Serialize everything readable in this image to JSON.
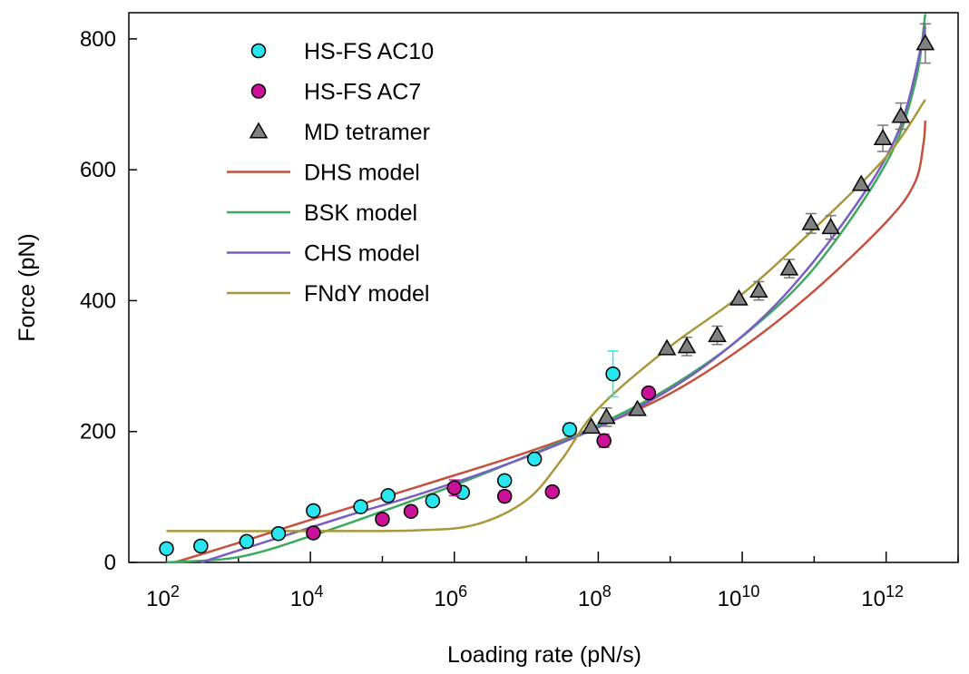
{
  "chart_data": {
    "type": "scatter",
    "title": "",
    "xlabel": "Loading rate (pN/s)",
    "ylabel": "Force (pN)",
    "x_scale": "log",
    "xlim": [
      30,
      10000000000000.0
    ],
    "ylim": [
      0,
      840
    ],
    "x_ticks": [
      {
        "value": 100,
        "base": "10",
        "exp": "2"
      },
      {
        "value": 10000,
        "base": "10",
        "exp": "4"
      },
      {
        "value": 1000000,
        "base": "10",
        "exp": "6"
      },
      {
        "value": 100000000,
        "base": "10",
        "exp": "8"
      },
      {
        "value": 10000000000,
        "base": "10",
        "exp": "10"
      },
      {
        "value": 1000000000000,
        "base": "10",
        "exp": "12"
      }
    ],
    "y_ticks": [
      0,
      200,
      400,
      600,
      800
    ],
    "grid": false,
    "legend_position": "top-left",
    "colors": {
      "HS-FS AC10": "#29e6ee",
      "HS-FS AC7": "#cc1199",
      "MD tetramer": "#808080",
      "DHS model": "#c4513e",
      "BSK model": "#3aaa5e",
      "CHS model": "#7b5cc4",
      "FNdY model": "#a8983a"
    },
    "legend": [
      {
        "label": "HS-FS AC10",
        "kind": "circle",
        "color": "#29e6ee"
      },
      {
        "label": "HS-FS AC7",
        "kind": "circle",
        "color": "#cc1199"
      },
      {
        "label": "MD tetramer",
        "kind": "triangle",
        "color": "#808080"
      },
      {
        "label": "DHS model",
        "kind": "line",
        "color": "#c4513e"
      },
      {
        "label": "BSK model",
        "kind": "line",
        "color": "#3aaa5e"
      },
      {
        "label": "CHS model",
        "kind": "line",
        "color": "#7b5cc4"
      },
      {
        "label": "FNdY model",
        "kind": "line",
        "color": "#a8983a"
      }
    ],
    "series": [
      {
        "name": "HS-FS AC10",
        "kind": "circle",
        "color": "#29e6ee",
        "points": [
          {
            "x": 100.0,
            "y": 21
          },
          {
            "x": 300.0,
            "y": 25
          },
          {
            "x": 1300.0,
            "y": 32
          },
          {
            "x": 3600.0,
            "y": 44
          },
          {
            "x": 11000.0,
            "y": 79
          },
          {
            "x": 50000.0,
            "y": 85
          },
          {
            "x": 120000.0,
            "y": 102
          },
          {
            "x": 500000.0,
            "y": 94
          },
          {
            "x": 1300000.0,
            "y": 107
          },
          {
            "x": 5000000.0,
            "y": 125
          },
          {
            "x": 13000000.0,
            "y": 158
          },
          {
            "x": 40000000.0,
            "y": 203,
            "err": 10
          },
          {
            "x": 160000000.0,
            "y": 288,
            "err": 35
          }
        ]
      },
      {
        "name": "HS-FS AC7",
        "kind": "circle",
        "color": "#cc1199",
        "points": [
          {
            "x": 11000.0,
            "y": 45
          },
          {
            "x": 100000.0,
            "y": 66
          },
          {
            "x": 250000.0,
            "y": 78
          },
          {
            "x": 1000000.0,
            "y": 114,
            "err": 12
          },
          {
            "x": 5000000.0,
            "y": 101,
            "err": 8
          },
          {
            "x": 23000000.0,
            "y": 108
          },
          {
            "x": 120000000.0,
            "y": 186,
            "err": 10
          },
          {
            "x": 500000000.0,
            "y": 259
          }
        ]
      },
      {
        "name": "MD tetramer",
        "kind": "triangle",
        "color": "#808080",
        "points": [
          {
            "x": 80000000.0,
            "y": 207
          },
          {
            "x": 130000000.0,
            "y": 222,
            "err": 14
          },
          {
            "x": 350000000.0,
            "y": 234
          },
          {
            "x": 900000000.0,
            "y": 327
          },
          {
            "x": 1700000000.0,
            "y": 330,
            "err": 14
          },
          {
            "x": 4500000000.0,
            "y": 347,
            "err": 14
          },
          {
            "x": 9000000000.0,
            "y": 403
          },
          {
            "x": 17000000000.0,
            "y": 415,
            "err": 14
          },
          {
            "x": 45000000000.0,
            "y": 449,
            "err": 14
          },
          {
            "x": 90000000000.0,
            "y": 518,
            "err": 15
          },
          {
            "x": 170000000000.0,
            "y": 512,
            "err": 18
          },
          {
            "x": 450000000000.0,
            "y": 578
          },
          {
            "x": 900000000000.0,
            "y": 648,
            "err": 20
          },
          {
            "x": 1600000000000.0,
            "y": 682,
            "err": 20
          },
          {
            "x": 3500000000000.0,
            "y": 793,
            "err": 30
          }
        ]
      },
      {
        "name": "DHS model",
        "kind": "line",
        "color": "#c4513e",
        "points": [
          {
            "x": 130.0,
            "y": 0
          },
          {
            "x": 1000.0,
            "y": 30
          },
          {
            "x": 10000.0,
            "y": 65
          },
          {
            "x": 100000.0,
            "y": 99
          },
          {
            "x": 1000000.0,
            "y": 133
          },
          {
            "x": 10000000.0,
            "y": 168
          },
          {
            "x": 100000000.0,
            "y": 208
          },
          {
            "x": 1000000000.0,
            "y": 258
          },
          {
            "x": 10000000000.0,
            "y": 328
          },
          {
            "x": 100000000000.0,
            "y": 415
          },
          {
            "x": 1000000000000.0,
            "y": 520
          },
          {
            "x": 2500000000000.0,
            "y": 580
          },
          {
            "x": 3300000000000.0,
            "y": 640
          },
          {
            "x": 3500000000000.0,
            "y": 675
          }
        ]
      },
      {
        "name": "BSK model",
        "kind": "line",
        "color": "#3aaa5e",
        "points": [
          {
            "x": 100.0,
            "y": 0
          },
          {
            "x": 1000.0,
            "y": 8
          },
          {
            "x": 10000.0,
            "y": 40
          },
          {
            "x": 100000.0,
            "y": 78
          },
          {
            "x": 1000000.0,
            "y": 118
          },
          {
            "x": 10000000.0,
            "y": 162
          },
          {
            "x": 100000000.0,
            "y": 210
          },
          {
            "x": 1000000000.0,
            "y": 268
          },
          {
            "x": 10000000000.0,
            "y": 345
          },
          {
            "x": 100000000000.0,
            "y": 450
          },
          {
            "x": 1000000000000.0,
            "y": 610
          },
          {
            "x": 2500000000000.0,
            "y": 730
          },
          {
            "x": 3500000000000.0,
            "y": 838
          }
        ]
      },
      {
        "name": "CHS model",
        "kind": "line",
        "color": "#7b5cc4",
        "points": [
          {
            "x": 300.0,
            "y": 0
          },
          {
            "x": 3000.0,
            "y": 35
          },
          {
            "x": 30000.0,
            "y": 70
          },
          {
            "x": 300000.0,
            "y": 103
          },
          {
            "x": 3000000.0,
            "y": 140
          },
          {
            "x": 30000000.0,
            "y": 182
          },
          {
            "x": 300000000.0,
            "y": 232
          },
          {
            "x": 3000000000.0,
            "y": 300
          },
          {
            "x": 30000000000.0,
            "y": 395
          },
          {
            "x": 300000000000.0,
            "y": 530
          },
          {
            "x": 1500000000000.0,
            "y": 660
          },
          {
            "x": 3500000000000.0,
            "y": 818
          }
        ]
      },
      {
        "name": "FNdY model",
        "kind": "line",
        "color": "#a8983a",
        "points": [
          {
            "x": 100.0,
            "y": 48
          },
          {
            "x": 10000.0,
            "y": 48
          },
          {
            "x": 300000.0,
            "y": 49
          },
          {
            "x": 2000000.0,
            "y": 58
          },
          {
            "x": 10000000.0,
            "y": 95
          },
          {
            "x": 30000000.0,
            "y": 155
          },
          {
            "x": 100000000.0,
            "y": 235
          },
          {
            "x": 1000000000.0,
            "y": 330
          },
          {
            "x": 10000000000.0,
            "y": 410
          },
          {
            "x": 100000000000.0,
            "y": 510
          },
          {
            "x": 1000000000000.0,
            "y": 620
          },
          {
            "x": 3500000000000.0,
            "y": 707
          }
        ]
      }
    ]
  }
}
